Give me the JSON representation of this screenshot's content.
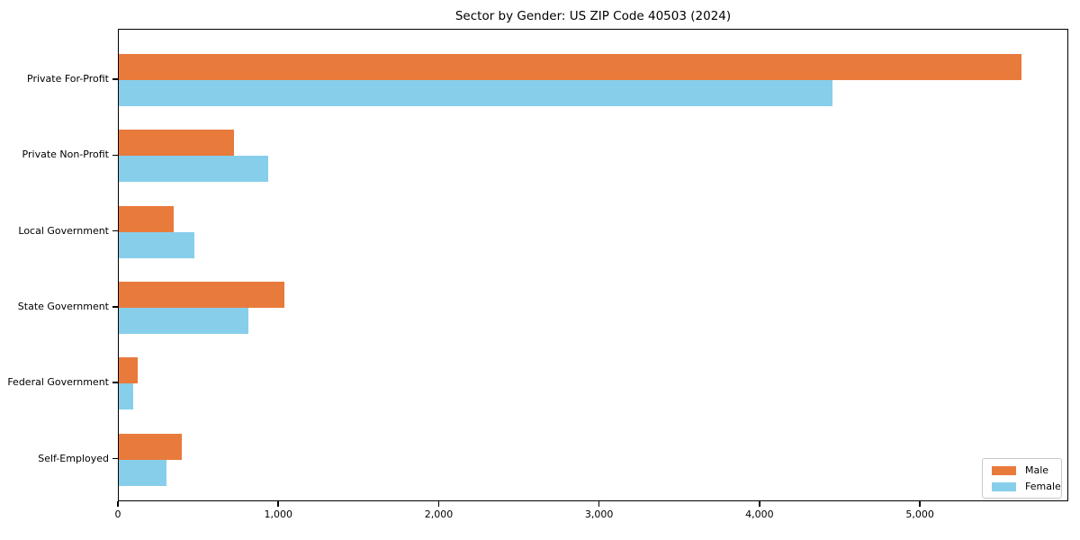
{
  "chart_data": {
    "type": "bar",
    "orientation": "horizontal",
    "title": "Sector by Gender: US ZIP Code 40503 (2024)",
    "categories": [
      "Private For-Profit",
      "Private Non-Profit",
      "Local Government",
      "State Government",
      "Federal Government",
      "Self-Employed"
    ],
    "series": [
      {
        "name": "Male",
        "color": "#E87A3C",
        "values": [
          5630,
          720,
          340,
          1030,
          120,
          390
        ]
      },
      {
        "name": "Female",
        "color": "#87CEEB",
        "values": [
          4450,
          930,
          470,
          810,
          90,
          300
        ]
      }
    ],
    "xlabel": "",
    "ylabel": "",
    "xlim": [
      0,
      5925
    ],
    "xticks": [
      0,
      1000,
      2000,
      3000,
      4000,
      5000
    ],
    "xtick_labels": [
      "0",
      "1,000",
      "2,000",
      "3,000",
      "4,000",
      "5,000"
    ],
    "grid": false,
    "legend": {
      "position": "lower right",
      "entries": [
        "Male",
        "Female"
      ]
    },
    "colors": {
      "axis": "#000000",
      "background": "#ffffff",
      "legend_border": "#c9c9c9"
    }
  }
}
